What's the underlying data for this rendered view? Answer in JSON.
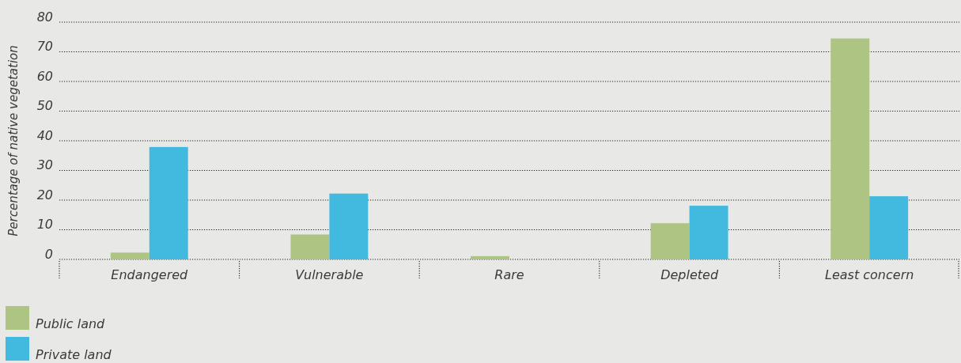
{
  "chart_data": {
    "type": "bar",
    "ylabel": "Percentage of native vegetation",
    "categories": [
      "Endangered",
      "Vulnerable",
      "Rare",
      "Depleted",
      "Least concern"
    ],
    "series": [
      {
        "name": "Public land",
        "color": "#adc483",
        "values": [
          2.3,
          8.4,
          1.1,
          12.2,
          74.5
        ]
      },
      {
        "name": "Private land",
        "color": "#42b9df",
        "values": [
          37.9,
          22.2,
          null,
          18.1,
          21.3
        ]
      }
    ],
    "ylim": [
      0,
      80
    ],
    "yticks": [
      0,
      10,
      20,
      30,
      40,
      50,
      60,
      70,
      80
    ],
    "grid": "y",
    "legend": "bottom left"
  }
}
